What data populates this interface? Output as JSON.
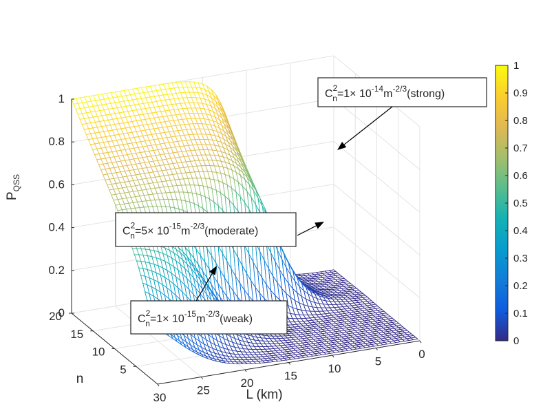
{
  "chart_data": {
    "type": "surface",
    "axes": {
      "x": {
        "label": "L (km)",
        "ticks": [
          "30",
          "25",
          "20",
          "15",
          "10",
          "5",
          "0"
        ],
        "range": [
          0,
          30
        ]
      },
      "y": {
        "label": "n",
        "ticks": [
          "5",
          "10",
          "15",
          "20"
        ],
        "range": [
          0,
          20
        ]
      },
      "z": {
        "label": "P",
        "label_sub": "QSS",
        "ticks": [
          "0",
          "0.2",
          "0.4",
          "0.6",
          "0.8",
          "1"
        ],
        "range": [
          0,
          1
        ]
      }
    },
    "grid": true,
    "colormap": "parula",
    "colorbar": {
      "ticks": [
        "0",
        "0.1",
        "0.2",
        "0.3",
        "0.4",
        "0.5",
        "0.6",
        "0.7",
        "0.8",
        "0.9",
        "1"
      ],
      "range": [
        0,
        1
      ]
    },
    "series": [
      {
        "name": "strong",
        "cn2_value": "1",
        "cn2_exp": "-14",
        "level": "strong"
      },
      {
        "name": "moderate",
        "cn2_value": "5",
        "cn2_exp": "-15",
        "level": "moderate"
      },
      {
        "name": "weak",
        "cn2_value": "1",
        "cn2_exp": "-15",
        "level": "weak"
      }
    ],
    "annotations": [
      {
        "id": "strong",
        "value": "1",
        "exp": "-14",
        "level": "strong"
      },
      {
        "id": "moderate",
        "value": "5",
        "exp": "-15",
        "level": "moderate"
      },
      {
        "id": "weak",
        "value": "1",
        "exp": "-15",
        "level": "weak"
      }
    ]
  }
}
